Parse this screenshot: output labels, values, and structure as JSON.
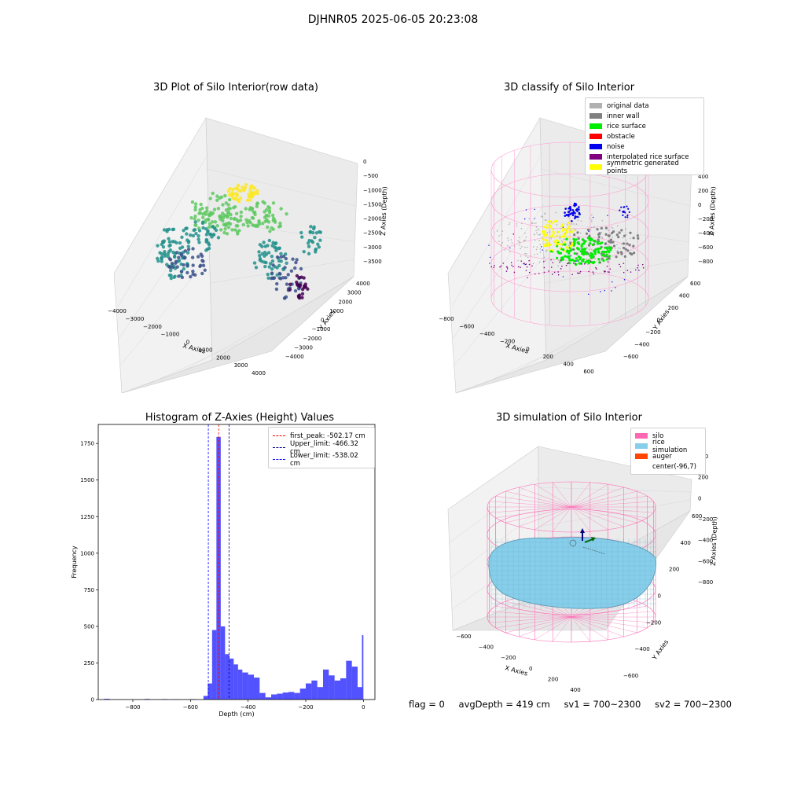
{
  "figure": {
    "suptitle": "DJHNR05 2025-06-05 20:23:08"
  },
  "chart_data": [
    {
      "type": "scatter",
      "title": "3D Plot of Silo Interior(row data)",
      "xlabel": "X Axies",
      "ylabel": "Y Axies",
      "zlabel": "Z Axies (Depth)",
      "x_ticks": [
        "−4000",
        "−3000",
        "−2000",
        "−1000",
        "0",
        "1000",
        "2000",
        "3000",
        "4000"
      ],
      "y_ticks": [
        "−4000",
        "−3000",
        "−2000",
        "−1000",
        "0",
        "1000",
        "2000",
        "3000",
        "4000"
      ],
      "z_ticks": [
        "0",
        "−500",
        "−1000",
        "−1500",
        "−2000",
        "−2500",
        "−3000",
        "−3500"
      ],
      "colormap": [
        "#440154",
        "#3b528b",
        "#21918c",
        "#5ec962",
        "#fde725"
      ]
    },
    {
      "type": "scatter",
      "title": "3D classify of Silo Interior",
      "xlabel": "X Axies",
      "ylabel": "Y Axies",
      "zlabel": "Z Axies (Depth)",
      "x_ticks": [
        "−800",
        "−600",
        "−400",
        "−200",
        "0",
        "200",
        "400",
        "600"
      ],
      "y_ticks": [
        "−600",
        "−400",
        "−200",
        "0",
        "200",
        "400",
        "600"
      ],
      "z_ticks": [
        "400",
        "200",
        "0",
        "−200",
        "−400",
        "−600",
        "−800"
      ],
      "legend": [
        {
          "label": "original data",
          "color": "#b0b0b0"
        },
        {
          "label": "inner wall",
          "color": "#808080"
        },
        {
          "label": "rice surface",
          "color": "#00ee00"
        },
        {
          "label": "obstacle",
          "color": "#ff0000"
        },
        {
          "label": "noise",
          "color": "#0000ee"
        },
        {
          "label": "interpolated rice surface",
          "color": "#800080"
        },
        {
          "label": "symmetric generated points",
          "color": "#ffff00"
        }
      ]
    },
    {
      "type": "bar",
      "title": "Histogram of Z-Axies (Height) Values",
      "xlabel": "Depth (cm)",
      "ylabel": "Frequency",
      "xlim": [
        -920,
        40
      ],
      "ylim": [
        0,
        1880
      ],
      "x_ticks": [
        -800,
        -600,
        -400,
        -200,
        0
      ],
      "x_tick_labels": [
        "−800",
        "−600",
        "−400",
        "−200",
        "0"
      ],
      "y_ticks": [
        0,
        250,
        500,
        750,
        1000,
        1250,
        1500,
        1750
      ],
      "bar_color": "#0000ff",
      "bins": [
        {
          "x0": -900,
          "x1": -880,
          "count": 5
        },
        {
          "x0": -760,
          "x1": -740,
          "count": 4
        },
        {
          "x0": -700,
          "x1": -680,
          "count": 3
        },
        {
          "x0": -660,
          "x1": -640,
          "count": 2
        },
        {
          "x0": -600,
          "x1": -580,
          "count": 3
        },
        {
          "x0": -555,
          "x1": -540,
          "count": 25
        },
        {
          "x0": -540,
          "x1": -525,
          "count": 110
        },
        {
          "x0": -525,
          "x1": -510,
          "count": 475
        },
        {
          "x0": -510,
          "x1": -495,
          "count": 1795
        },
        {
          "x0": -495,
          "x1": -480,
          "count": 500
        },
        {
          "x0": -480,
          "x1": -465,
          "count": 310
        },
        {
          "x0": -465,
          "x1": -450,
          "count": 280
        },
        {
          "x0": -450,
          "x1": -435,
          "count": 240
        },
        {
          "x0": -435,
          "x1": -420,
          "count": 205
        },
        {
          "x0": -420,
          "x1": -400,
          "count": 185
        },
        {
          "x0": -400,
          "x1": -380,
          "count": 170
        },
        {
          "x0": -380,
          "x1": -360,
          "count": 150
        },
        {
          "x0": -360,
          "x1": -340,
          "count": 45
        },
        {
          "x0": -340,
          "x1": -320,
          "count": 15
        },
        {
          "x0": -320,
          "x1": -300,
          "count": 35
        },
        {
          "x0": -300,
          "x1": -280,
          "count": 40
        },
        {
          "x0": -280,
          "x1": -260,
          "count": 48
        },
        {
          "x0": -260,
          "x1": -240,
          "count": 52
        },
        {
          "x0": -240,
          "x1": -220,
          "count": 45
        },
        {
          "x0": -220,
          "x1": -200,
          "count": 75
        },
        {
          "x0": -200,
          "x1": -180,
          "count": 110
        },
        {
          "x0": -180,
          "x1": -160,
          "count": 130
        },
        {
          "x0": -160,
          "x1": -140,
          "count": 85
        },
        {
          "x0": -140,
          "x1": -120,
          "count": 205
        },
        {
          "x0": -120,
          "x1": -100,
          "count": 165
        },
        {
          "x0": -100,
          "x1": -80,
          "count": 130
        },
        {
          "x0": -80,
          "x1": -60,
          "count": 145
        },
        {
          "x0": -60,
          "x1": -40,
          "count": 265
        },
        {
          "x0": -40,
          "x1": -20,
          "count": 225
        },
        {
          "x0": -20,
          "x1": -5,
          "count": 85
        },
        {
          "x0": -5,
          "x1": 0,
          "count": 440
        }
      ],
      "vlines": [
        {
          "label": "first_peak: -502.17 cm",
          "x": -502.17,
          "color": "#ff0000"
        },
        {
          "label": "Upper_limit: -466.32 cm",
          "x": -466.32,
          "color": "#00008b"
        },
        {
          "label": "Lower_limit: -538.02 cm",
          "x": -538.02,
          "color": "#0000ff"
        }
      ]
    },
    {
      "type": "scatter",
      "title": "3D simulation of Silo Interior",
      "xlabel": "X Axies",
      "ylabel": "Y Axies",
      "zlabel": "Z Axies (Depth)",
      "x_ticks": [
        "−600",
        "−400",
        "−200",
        "0",
        "200",
        "400"
      ],
      "y_ticks": [
        "−600",
        "−400",
        "−200",
        "0",
        "200",
        "400",
        "600"
      ],
      "z_ticks": [
        "400",
        "200",
        "0",
        "−200",
        "−400",
        "−600",
        "−800"
      ],
      "legend": [
        {
          "label": "silo",
          "color": "#ff69b4"
        },
        {
          "label": "rice simulation",
          "color": "#87ceeb"
        },
        {
          "label": "auger",
          "color": "#ff4500"
        },
        {
          "label": "center(-96,7)",
          "color": "#ffffff"
        }
      ]
    }
  ],
  "footer": {
    "flag": "flag = 0",
    "avg_depth": "avgDepth = 419 cm",
    "sv1": "sv1 = 700~2300",
    "sv2": "sv2 = 700~2300"
  }
}
